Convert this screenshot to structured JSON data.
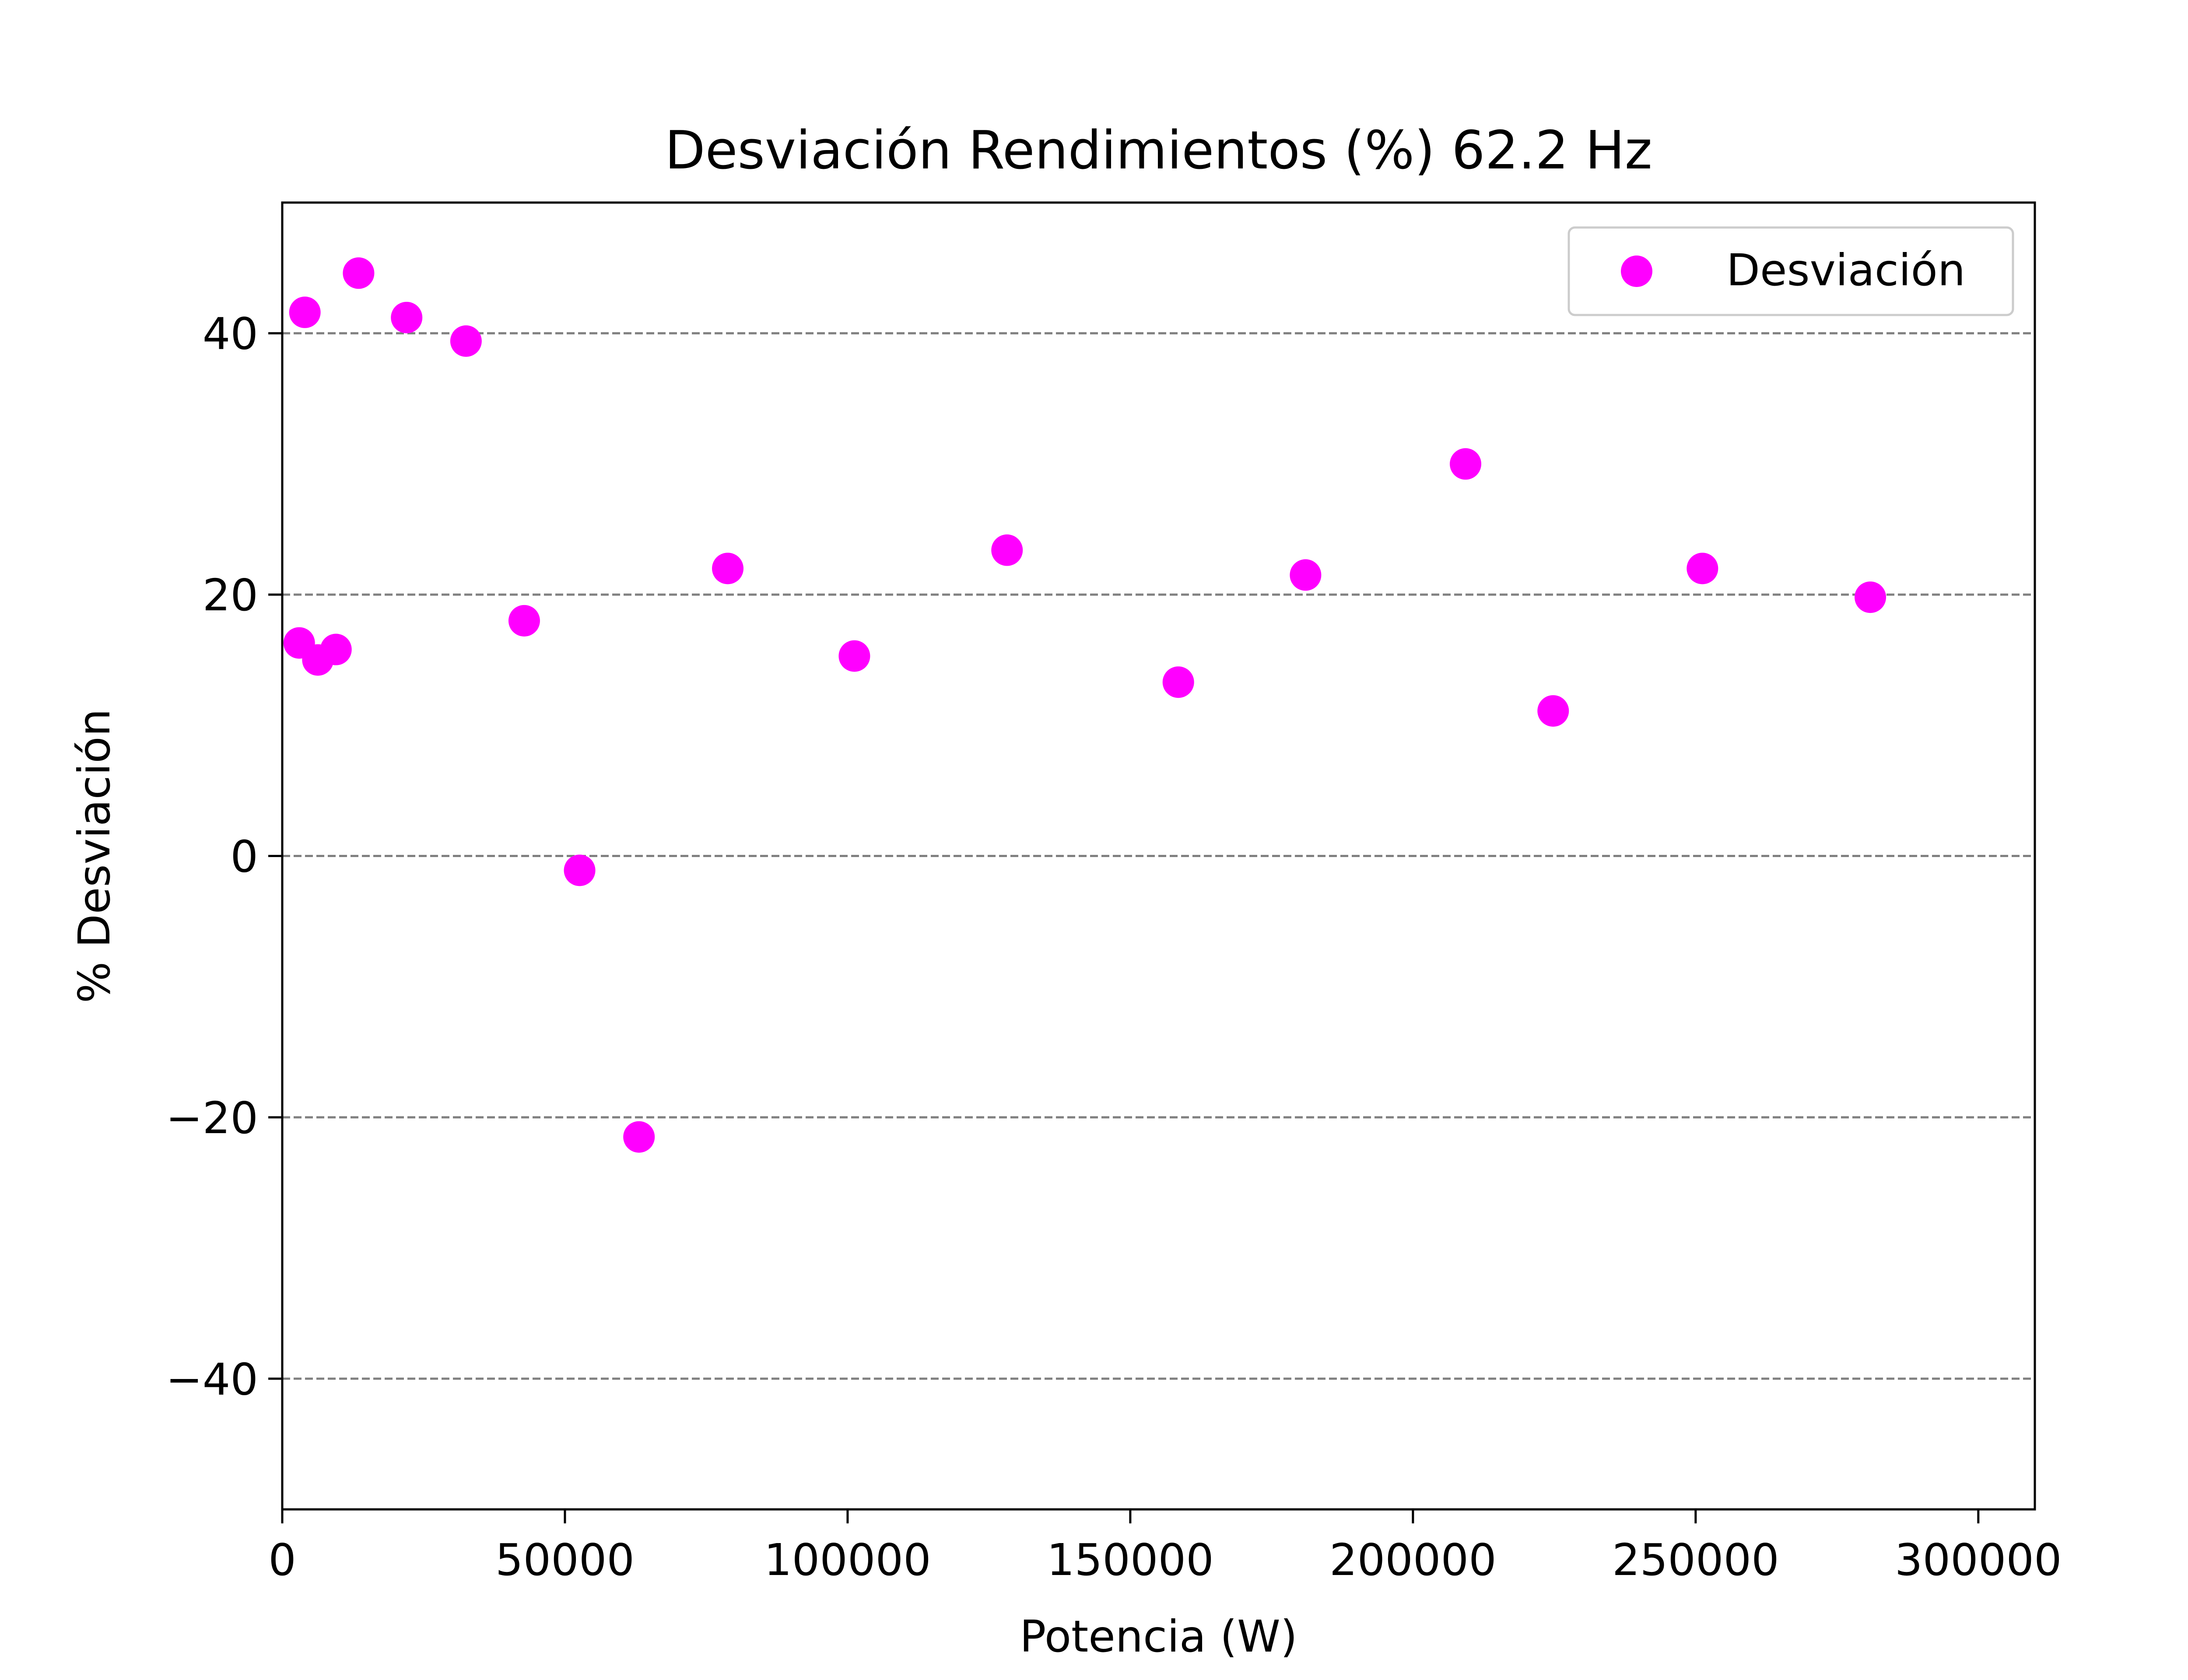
{
  "chart_data": {
    "type": "scatter",
    "title": "Desviación Rendimientos (%) 62.2 Hz",
    "xlabel": "Potencia (W)",
    "ylabel": "% Desviación",
    "xlim": [
      0,
      310000
    ],
    "ylim": [
      -50,
      50
    ],
    "xticks": [
      0,
      50000,
      100000,
      150000,
      200000,
      250000,
      300000
    ],
    "xtick_labels": [
      "0",
      "50000",
      "100000",
      "150000",
      "200000",
      "250000",
      "300000"
    ],
    "yticks": [
      -40,
      -20,
      0,
      20,
      40
    ],
    "ytick_labels": [
      "−40",
      "−20",
      "0",
      "20",
      "40"
    ],
    "grid": "horizontal dashed",
    "legend_position": "upper right",
    "series": [
      {
        "name": "Desviación",
        "color": "#ff00ff",
        "points": [
          {
            "x": 3000,
            "y": 16.3
          },
          {
            "x": 4000,
            "y": 41.6
          },
          {
            "x": 6300,
            "y": 15.0
          },
          {
            "x": 9500,
            "y": 15.8
          },
          {
            "x": 13500,
            "y": 44.6
          },
          {
            "x": 22000,
            "y": 41.2
          },
          {
            "x": 32500,
            "y": 39.4
          },
          {
            "x": 42800,
            "y": 18.0
          },
          {
            "x": 52600,
            "y": -1.1
          },
          {
            "x": 63100,
            "y": -21.5
          },
          {
            "x": 78800,
            "y": 22.0
          },
          {
            "x": 101200,
            "y": 15.3
          },
          {
            "x": 128200,
            "y": 23.4
          },
          {
            "x": 158500,
            "y": 13.3
          },
          {
            "x": 181000,
            "y": 21.5
          },
          {
            "x": 209300,
            "y": 30.0
          },
          {
            "x": 224800,
            "y": 11.1
          },
          {
            "x": 251200,
            "y": 22.0
          },
          {
            "x": 280900,
            "y": 19.8
          }
        ]
      }
    ]
  }
}
